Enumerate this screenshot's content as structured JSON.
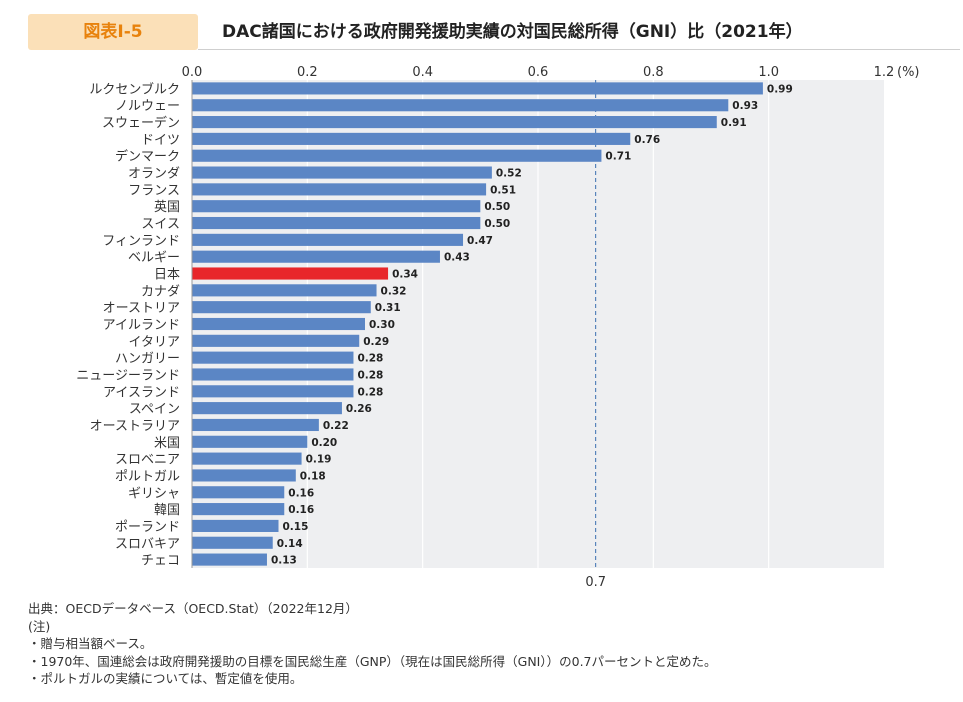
{
  "header": {
    "figure_label": "図表Ⅰ-5",
    "title": "DAC諸国における政府開発援助実績の対国民総所得（GNI）比（2021年）"
  },
  "chart_data": {
    "type": "bar",
    "orientation": "horizontal",
    "categories": [
      "ルクセンブルク",
      "ノルウェー",
      "スウェーデン",
      "ドイツ",
      "デンマーク",
      "オランダ",
      "フランス",
      "英国",
      "スイス",
      "フィンランド",
      "ベルギー",
      "日本",
      "カナダ",
      "オーストリア",
      "アイルランド",
      "イタリア",
      "ハンガリー",
      "ニュージーランド",
      "アイスランド",
      "スペイン",
      "オーストラリア",
      "米国",
      "スロベニア",
      "ポルトガル",
      "ギリシャ",
      "韓国",
      "ポーランド",
      "スロバキア",
      "チェコ"
    ],
    "values": [
      0.99,
      0.93,
      0.91,
      0.76,
      0.71,
      0.52,
      0.51,
      0.5,
      0.5,
      0.47,
      0.43,
      0.34,
      0.32,
      0.31,
      0.3,
      0.29,
      0.28,
      0.28,
      0.28,
      0.26,
      0.22,
      0.2,
      0.19,
      0.18,
      0.16,
      0.16,
      0.15,
      0.14,
      0.13
    ],
    "value_labels": [
      "0.99",
      "0.93",
      "0.91",
      "0.76",
      "0.71",
      "0.52",
      "0.51",
      "0.50",
      "0.50",
      "0.47",
      "0.43",
      "0.34",
      "0.32",
      "0.31",
      "0.30",
      "0.29",
      "0.28",
      "0.28",
      "0.28",
      "0.26",
      "0.22",
      "0.20",
      "0.19",
      "0.18",
      "0.16",
      "0.16",
      "0.15",
      "0.14",
      "0.13"
    ],
    "highlight_category": "日本",
    "colors": {
      "bar": "#5b86c5",
      "highlight": "#e8262a",
      "background": "#eeeff1",
      "grid": "#ffffff",
      "reference_line": "#3a6fb0"
    },
    "xlim": [
      0,
      1.2
    ],
    "ticks": [
      0.0,
      0.2,
      0.4,
      0.6,
      0.8,
      1.0,
      1.2
    ],
    "tick_labels": [
      "0.0",
      "0.2",
      "0.4",
      "0.6",
      "0.8",
      "1.0",
      "1.2"
    ],
    "unit": "(%)",
    "reference_line": {
      "value": 0.7,
      "label": "0.7"
    },
    "grid": true
  },
  "notes": [
    "出典：OECDデータベース（OECD.Stat）（2022年12月）",
    "(注)",
    "・贈与相当額ベース。",
    "・1970年、国連総会は政府開発援助の目標を国民総生産（GNP）（現在は国民総所得（GNI））の0.7パーセントと定めた。",
    "・ポルトガルの実績については、暫定値を使用。"
  ]
}
